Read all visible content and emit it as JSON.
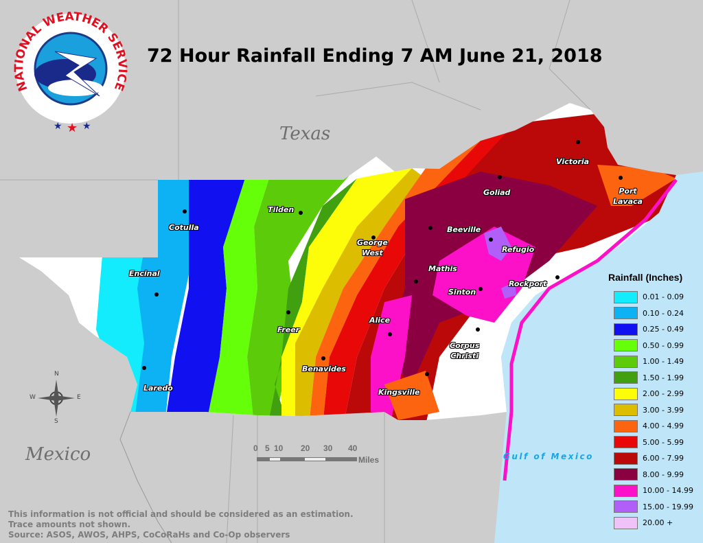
{
  "title": "72 Hour Rainfall Ending 7 AM June 21, 2018",
  "logo": {
    "text": "NATIONAL WEATHER SERVICE",
    "icon": "nws-logo"
  },
  "regions": {
    "texas": "Texas",
    "mexico": "Mexico",
    "gulf": "Gulf of Mexico"
  },
  "cities": [
    {
      "name": "Cotulla"
    },
    {
      "name": "Tilden"
    },
    {
      "name": "George\nWest"
    },
    {
      "name": "Beeville"
    },
    {
      "name": "Goliad"
    },
    {
      "name": "Victoria"
    },
    {
      "name": "Port\nLavaca"
    },
    {
      "name": "Refugio"
    },
    {
      "name": "Mathis"
    },
    {
      "name": "Sinton"
    },
    {
      "name": "Rockport"
    },
    {
      "name": "Encinal"
    },
    {
      "name": "Freer"
    },
    {
      "name": "Alice"
    },
    {
      "name": "Corpus\nChristi"
    },
    {
      "name": "Benavides"
    },
    {
      "name": "Kingsville"
    },
    {
      "name": "Laredo"
    }
  ],
  "legend": {
    "title": "Rainfall (Inches)",
    "items": [
      {
        "label": "0.01 - 0.09",
        "color": "#12ecfc"
      },
      {
        "label": "0.10 - 0.24",
        "color": "#0db2f5"
      },
      {
        "label": "0.25 - 0.49",
        "color": "#1010f0"
      },
      {
        "label": "0.50 - 0.99",
        "color": "#66ff0a"
      },
      {
        "label": "1.00 - 1.49",
        "color": "#5ccc0a"
      },
      {
        "label": "1.50 - 1.99",
        "color": "#40a010"
      },
      {
        "label": "2.00 - 2.99",
        "color": "#fdfd0a"
      },
      {
        "label": "3.00 - 3.99",
        "color": "#dcbd00"
      },
      {
        "label": "4.00 - 4.99",
        "color": "#fd6410"
      },
      {
        "label": "5.00 - 5.99",
        "color": "#e80808"
      },
      {
        "label": "6.00 - 7.99",
        "color": "#bb0808"
      },
      {
        "label": "8.00 - 9.99",
        "color": "#8b0040"
      },
      {
        "label": "10.00 - 14.99",
        "color": "#fc10c8"
      },
      {
        "label": "15.00 - 19.99",
        "color": "#b060f8"
      },
      {
        "label": "20.00 +",
        "color": "#efc2f8"
      }
    ]
  },
  "scale": {
    "ticks": [
      "0",
      "5",
      "10",
      "20",
      "30",
      "40"
    ],
    "unit": "Miles"
  },
  "compass": {
    "n": "N",
    "s": "S",
    "e": "E",
    "w": "W"
  },
  "disclaimer": [
    "This information is not official and should be considered as an estimation.",
    "Trace amounts not shown.",
    "Source: ASOS, AWOS, AHPS, CoCoRaHs and Co-Op observers"
  ],
  "colors": {
    "land": "#cdcdcd",
    "water": "#bfe6f8"
  }
}
